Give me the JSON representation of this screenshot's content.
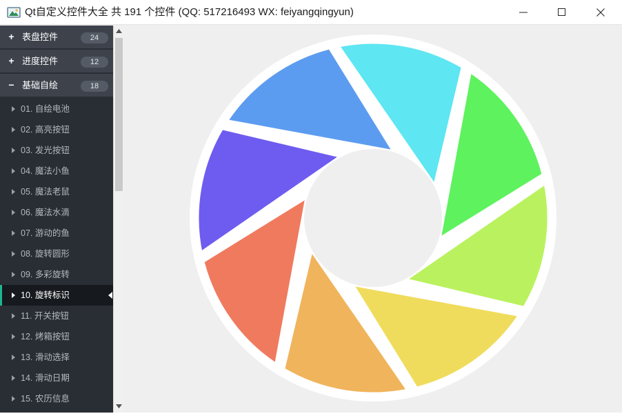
{
  "window": {
    "title": "Qt自定义控件大全 共 191 个控件 (QQ: 517216493 WX: feiyangqingyun)",
    "icons": {
      "app": "app-icon",
      "minimize": "minimize-icon",
      "maximize": "maximize-icon",
      "close": "close-icon"
    }
  },
  "sidebar": {
    "groups": [
      {
        "icon": "+",
        "label": "表盘控件",
        "count": "24"
      },
      {
        "icon": "+",
        "label": "进度控件",
        "count": "12"
      },
      {
        "icon": "−",
        "label": "基础自绘",
        "count": "18"
      }
    ],
    "items": [
      {
        "label": "01. 自绘电池"
      },
      {
        "label": "02. 高亮按钮"
      },
      {
        "label": "03. 发光按钮"
      },
      {
        "label": "04. 魔法小鱼"
      },
      {
        "label": "05. 魔法老鼠"
      },
      {
        "label": "06. 魔法水滴"
      },
      {
        "label": "07. 游动的鱼"
      },
      {
        "label": "08. 旋转圆形"
      },
      {
        "label": "09. 多彩旋转"
      },
      {
        "label": "10. 旋转标识"
      },
      {
        "label": "11. 开关按钮"
      },
      {
        "label": "12. 烤箱按钮"
      },
      {
        "label": "13. 滑动选择"
      },
      {
        "label": "14. 滑动日期"
      },
      {
        "label": "15. 农历信息"
      }
    ],
    "selected_index": 9,
    "accent_color": "#1fb593"
  },
  "widget": {
    "name": "rotating-logo",
    "ring_color": "#ffffff",
    "center_color": "#efefef",
    "blade_colors": [
      "#5ee6f2",
      "#5ef25e",
      "#b9f25e",
      "#f0dc5c",
      "#f0b45c",
      "#f07a5e",
      "#6e5cf0",
      "#5c9cf0"
    ]
  }
}
